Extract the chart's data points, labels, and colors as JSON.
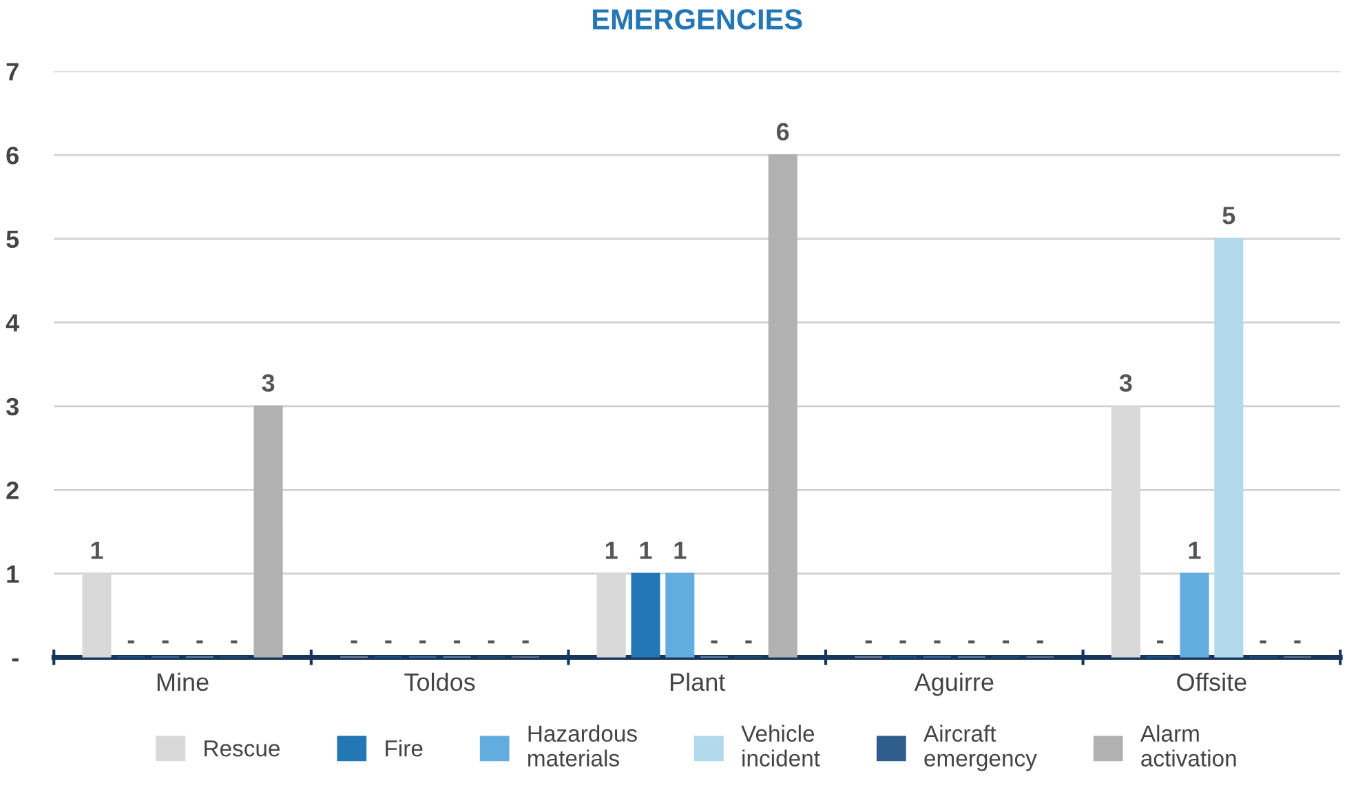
{
  "chart_data": {
    "type": "bar",
    "title": "EMERGENCIES",
    "categories": [
      "Mine",
      "Toldos",
      "Plant",
      "Aguirre",
      "Offsite"
    ],
    "series": [
      {
        "name": "Rescue",
        "color": "#d9d9d9",
        "values": [
          1,
          0,
          1,
          0,
          3
        ],
        "value_labels": [
          "1",
          "-",
          "1",
          "-",
          "3"
        ]
      },
      {
        "name": "Fire",
        "color": "#2377b4",
        "values": [
          0,
          0,
          1,
          0,
          0
        ],
        "value_labels": [
          "-",
          "-",
          "1",
          "-",
          "-"
        ]
      },
      {
        "name": "Hazardous materials",
        "color": "#62ade0",
        "values": [
          0,
          0,
          1,
          0,
          1
        ],
        "value_labels": [
          "-",
          "-",
          "1",
          "-",
          "1"
        ]
      },
      {
        "name": "Vehicle incident",
        "color": "#b3d9ed",
        "values": [
          0,
          0,
          0,
          0,
          5
        ],
        "value_labels": [
          "-",
          "-",
          "-",
          "-",
          "5"
        ]
      },
      {
        "name": "Aircraft emergency",
        "color": "#2e5d8c",
        "values": [
          0,
          0,
          0,
          0,
          0
        ],
        "value_labels": [
          "-",
          "-",
          "-",
          "-",
          "-"
        ]
      },
      {
        "name": "Alarm activation",
        "color": "#b1b1b1",
        "values": [
          3,
          0,
          6,
          0,
          0
        ],
        "value_labels": [
          "3",
          "-",
          "6",
          "-",
          "-"
        ]
      }
    ],
    "ylim": [
      0,
      7
    ],
    "yticks": [
      {
        "value": 0,
        "label": "-"
      },
      1,
      2,
      3,
      4,
      5,
      6,
      7
    ],
    "grid": "y",
    "legend": "bottom"
  }
}
